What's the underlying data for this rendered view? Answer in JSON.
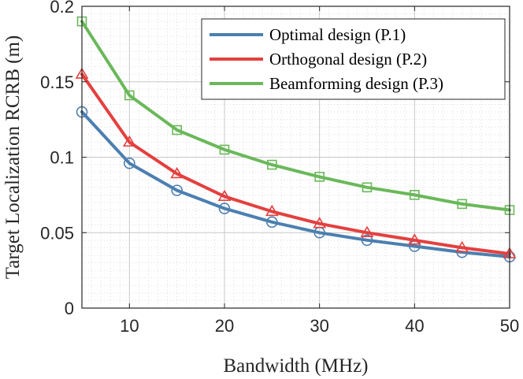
{
  "chart_data": {
    "type": "line",
    "title": "",
    "xlabel": "Bandwidth (MHz)",
    "ylabel": "Target Localization RCRB (m)",
    "xlim": [
      5,
      50
    ],
    "ylim": [
      0,
      0.2
    ],
    "xticks": [
      10,
      20,
      30,
      40,
      50
    ],
    "xtick_labels": [
      "10",
      "20",
      "30",
      "40",
      "50"
    ],
    "yticks": [
      0,
      0.05,
      0.1,
      0.15,
      0.2
    ],
    "ytick_labels": [
      "0",
      "0.05",
      "0.1",
      "0.15",
      "0.2"
    ],
    "grid": true,
    "minor_grid": true,
    "legend_position": "top-right",
    "x": [
      5,
      10,
      15,
      20,
      25,
      30,
      35,
      40,
      45,
      50
    ],
    "series": [
      {
        "name": "Optimal design (P.1)",
        "color": "#4c7fb0",
        "marker": "circle",
        "values": [
          0.13,
          0.096,
          0.078,
          0.066,
          0.057,
          0.05,
          0.045,
          0.041,
          0.037,
          0.034
        ]
      },
      {
        "name": "Orthogonal design (P.2)",
        "color": "#e3403f",
        "marker": "triangle",
        "values": [
          0.155,
          0.11,
          0.089,
          0.074,
          0.064,
          0.056,
          0.05,
          0.045,
          0.04,
          0.036
        ]
      },
      {
        "name": "Beamforming design (P.3)",
        "color": "#6ab85a",
        "marker": "square",
        "values": [
          0.19,
          0.141,
          0.118,
          0.105,
          0.095,
          0.087,
          0.08,
          0.075,
          0.069,
          0.065
        ]
      }
    ]
  }
}
